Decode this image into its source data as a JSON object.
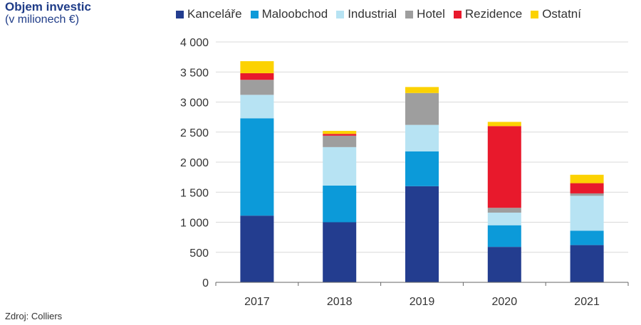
{
  "title": "Objem investic",
  "subtitle": "(v milionech €)",
  "source": "Zdroj: Colliers",
  "chart_data": {
    "type": "bar",
    "stacked": true,
    "categories": [
      "2017",
      "2018",
      "2019",
      "2020",
      "2021"
    ],
    "ylim": [
      0,
      4000
    ],
    "yticks": [
      "0",
      "500",
      "1 000",
      "1 500",
      "2 000",
      "2 500",
      "3 000",
      "3 500",
      "4 000"
    ],
    "ytick_values": [
      0,
      500,
      1000,
      1500,
      2000,
      2500,
      3000,
      3500,
      4000
    ],
    "grid": true,
    "legend_position": "top",
    "series": [
      {
        "name": "Kanceláře",
        "color": "#233d8f",
        "values": [
          1110,
          1000,
          1600,
          590,
          620
        ]
      },
      {
        "name": "Maloobchod",
        "color": "#0c9ad9",
        "values": [
          1620,
          610,
          580,
          360,
          240
        ]
      },
      {
        "name": "Industrial",
        "color": "#b7e3f3",
        "values": [
          390,
          640,
          440,
          210,
          580
        ]
      },
      {
        "name": "Hotel",
        "color": "#9e9e9e",
        "values": [
          250,
          190,
          530,
          80,
          40
        ]
      },
      {
        "name": "Rezidence",
        "color": "#e8192c",
        "values": [
          110,
          30,
          0,
          1360,
          170
        ]
      },
      {
        "name": "Ostatní",
        "color": "#fcd202",
        "values": [
          200,
          50,
          100,
          70,
          140
        ]
      }
    ]
  }
}
